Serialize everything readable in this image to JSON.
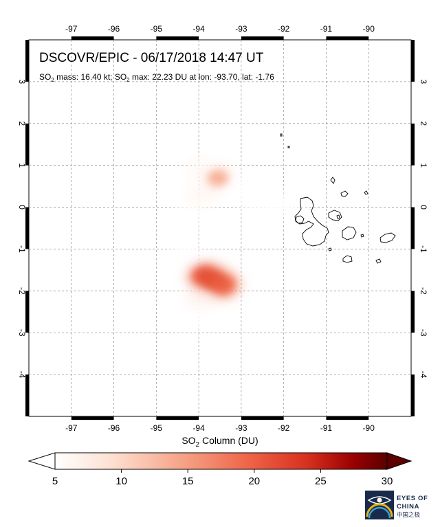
{
  "title": {
    "main": "DSCOVR/EPIC - 06/17/2018 14:47 UT",
    "so2_prefix": "SO",
    "sub_2": "2",
    "mass_text": " mass: 16.40 kt; SO",
    "max_text": " max: 22.23 DU at lon: -93.70, lat: -1.76"
  },
  "map": {
    "lon_ticks": [
      "-97",
      "-96",
      "-95",
      "-94",
      "-93",
      "-92",
      "-91",
      "-90"
    ],
    "lat_ticks": [
      "3",
      "2",
      "1",
      "0",
      "-1",
      "-2",
      "-3",
      "-4"
    ],
    "lon_range": [
      -98.0,
      -89.0
    ],
    "lat_range": [
      -5.0,
      4.0
    ],
    "grid": "dashed"
  },
  "so2_plume": {
    "max_value": 22.23,
    "max_lon": -93.7,
    "max_lat": -1.76,
    "units": "DU",
    "blobs": [
      {
        "lon": -93.65,
        "lat": -1.75,
        "value": 22
      },
      {
        "lon": -93.85,
        "lat": -1.65,
        "value": 19
      },
      {
        "lon": -93.45,
        "lat": -1.85,
        "value": 18
      },
      {
        "lon": -93.95,
        "lat": -2.2,
        "value": 11
      },
      {
        "lon": -94.05,
        "lat": -2.6,
        "value": 8
      },
      {
        "lon": -94.3,
        "lat": -1.1,
        "value": 8
      },
      {
        "lon": -94.45,
        "lat": -0.55,
        "value": 9
      },
      {
        "lon": -94.25,
        "lat": -0.2,
        "value": 8
      },
      {
        "lon": -93.95,
        "lat": 0.25,
        "value": 10
      },
      {
        "lon": -93.55,
        "lat": 0.7,
        "value": 13
      },
      {
        "lon": -93.9,
        "lat": 0.9,
        "value": 10
      },
      {
        "lon": -93.1,
        "lat": 0.5,
        "value": 9
      },
      {
        "lon": -92.7,
        "lat": 0.15,
        "value": 9
      },
      {
        "lon": -92.25,
        "lat": 0.05,
        "value": 8
      },
      {
        "lon": -91.85,
        "lat": 0.05,
        "value": 7
      }
    ]
  },
  "colorbar": {
    "label_prefix": "SO",
    "label_sub": "2",
    "label_suffix": " Column (DU)",
    "ticks": [
      "5",
      "10",
      "15",
      "20",
      "25",
      "30"
    ],
    "tick_values": [
      5,
      10,
      15,
      20,
      25,
      30
    ],
    "range": [
      5,
      30
    ],
    "colors": [
      "#ffffff",
      "#fde0d2",
      "#f6a488",
      "#ef6548",
      "#d7301f",
      "#990000",
      "#5c0000"
    ]
  },
  "logo": {
    "line1": "EYES OF",
    "line2": "CHINA",
    "cn": "中国之极"
  }
}
